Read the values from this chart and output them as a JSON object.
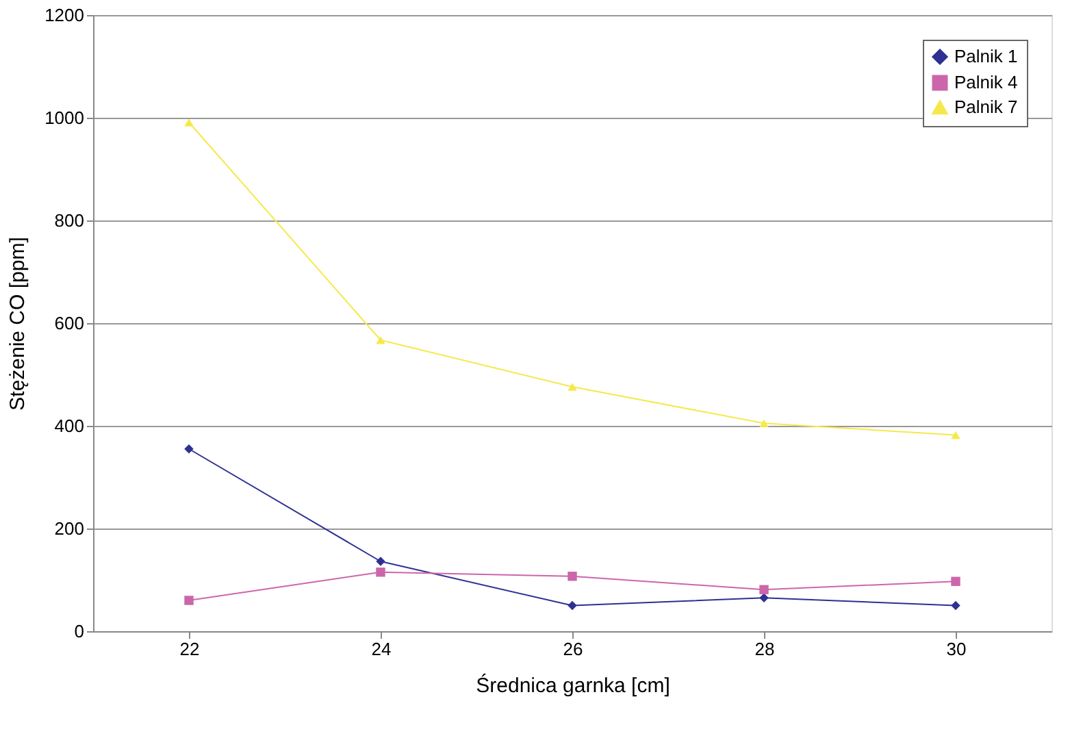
{
  "chart_data": {
    "type": "line",
    "xlabel": "Średnica garnka [cm]",
    "ylabel": "Stężenie CO [ppm]",
    "categories": [
      "22",
      "24",
      "26",
      "28",
      "30"
    ],
    "ylim": [
      0,
      1200
    ],
    "yticks": [
      0,
      200,
      400,
      600,
      800,
      1000,
      1200
    ],
    "grid": "y",
    "legend": "top right",
    "line_style": "solid",
    "series": [
      {
        "name": "Palnik 1",
        "color": "#2e3192",
        "marker": "diamond",
        "values": [
          355,
          136,
          50,
          65,
          50
        ]
      },
      {
        "name": "Palnik 4",
        "color": "#cc66aa",
        "marker": "square",
        "values": [
          60,
          115,
          107,
          81,
          97
        ]
      },
      {
        "name": "Palnik 7",
        "color": "#f5e94a",
        "marker": "triangle",
        "values": [
          991,
          567,
          476,
          405,
          382
        ]
      }
    ]
  }
}
